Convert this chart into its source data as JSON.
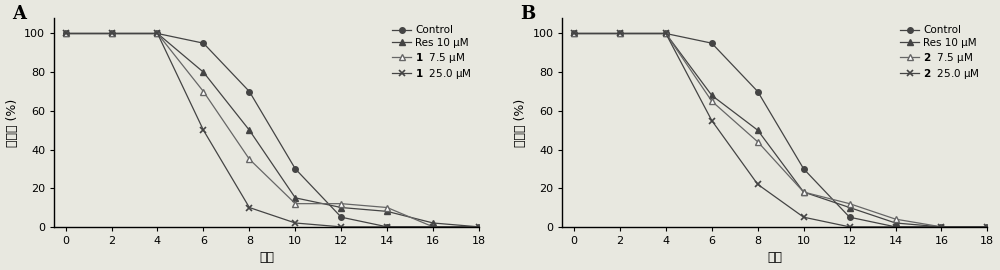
{
  "panel_A": {
    "title": "A",
    "series": [
      {
        "label": "Control",
        "marker": "o",
        "color": "#444444",
        "markersize": 4,
        "markerfacecolor": "#444444",
        "x": [
          0,
          2,
          4,
          6,
          8,
          10,
          12,
          14,
          16,
          18
        ],
        "y": [
          100,
          100,
          100,
          95,
          70,
          30,
          5,
          0,
          0,
          0
        ]
      },
      {
        "label": "Res 10 μM",
        "marker": "^",
        "color": "#444444",
        "markersize": 4,
        "markerfacecolor": "#444444",
        "x": [
          0,
          2,
          4,
          6,
          8,
          10,
          12,
          14,
          16,
          18
        ],
        "y": [
          100,
          100,
          100,
          80,
          50,
          15,
          10,
          8,
          2,
          0
        ]
      },
      {
        "label": "1  7.5 μM",
        "marker": "^",
        "color": "#666666",
        "markersize": 4,
        "markerfacecolor": "white",
        "x": [
          0,
          2,
          4,
          6,
          8,
          10,
          12,
          14,
          16,
          18
        ],
        "y": [
          100,
          100,
          100,
          70,
          35,
          12,
          12,
          10,
          0,
          0
        ]
      },
      {
        "label": "1  25.0 μM",
        "marker": "x",
        "color": "#444444",
        "markersize": 5,
        "markerfacecolor": "#444444",
        "x": [
          0,
          2,
          4,
          6,
          8,
          10,
          12,
          14,
          16,
          18
        ],
        "y": [
          100,
          100,
          100,
          50,
          10,
          2,
          0,
          0,
          0,
          0
        ]
      }
    ],
    "bold_labels": [
      "1",
      "1"
    ],
    "xlabel": "代数",
    "ylabel": "生存率 (%)",
    "xlim": [
      -0.5,
      18
    ],
    "ylim": [
      0,
      108
    ],
    "xticks": [
      0,
      2,
      4,
      6,
      8,
      10,
      12,
      14,
      16,
      18
    ],
    "yticks": [
      0,
      20,
      40,
      60,
      80,
      100
    ]
  },
  "panel_B": {
    "title": "B",
    "series": [
      {
        "label": "Control",
        "marker": "o",
        "color": "#444444",
        "markersize": 4,
        "markerfacecolor": "#444444",
        "x": [
          0,
          2,
          4,
          6,
          8,
          10,
          12,
          14,
          16,
          18
        ],
        "y": [
          100,
          100,
          100,
          95,
          70,
          30,
          5,
          0,
          0,
          0
        ]
      },
      {
        "label": "Res 10 μM",
        "marker": "^",
        "color": "#444444",
        "markersize": 4,
        "markerfacecolor": "#444444",
        "x": [
          0,
          2,
          4,
          6,
          8,
          10,
          12,
          14,
          16,
          18
        ],
        "y": [
          100,
          100,
          100,
          68,
          50,
          18,
          10,
          2,
          0,
          0
        ]
      },
      {
        "label": "2  7.5 μM",
        "marker": "^",
        "color": "#666666",
        "markersize": 4,
        "markerfacecolor": "white",
        "x": [
          0,
          2,
          4,
          6,
          8,
          10,
          12,
          14,
          16,
          18
        ],
        "y": [
          100,
          100,
          100,
          65,
          44,
          18,
          12,
          4,
          0,
          0
        ]
      },
      {
        "label": "2  25.0 μM",
        "marker": "x",
        "color": "#444444",
        "markersize": 5,
        "markerfacecolor": "#444444",
        "x": [
          0,
          2,
          4,
          6,
          8,
          10,
          12,
          14,
          16,
          18
        ],
        "y": [
          100,
          100,
          100,
          55,
          22,
          5,
          0,
          0,
          0,
          0
        ]
      }
    ],
    "xlabel": "代数",
    "ylabel": "生存率 (%)",
    "xlim": [
      -0.5,
      18
    ],
    "ylim": [
      0,
      108
    ],
    "xticks": [
      0,
      2,
      4,
      6,
      8,
      10,
      12,
      14,
      16,
      18
    ],
    "yticks": [
      0,
      20,
      40,
      60,
      80,
      100
    ]
  },
  "background_color": "#e8e8e0",
  "font_size": 8,
  "legend_font_size": 7.5
}
